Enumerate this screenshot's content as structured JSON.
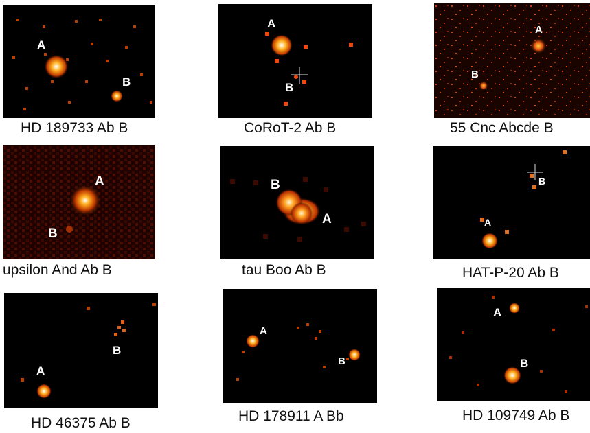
{
  "panels": [
    {
      "caption": "HD 189733 Ab B",
      "label_a": "A",
      "label_b": "B"
    },
    {
      "caption": "CoRoT-2 Ab B",
      "label_a": "A",
      "label_b": "B"
    },
    {
      "caption": "55 Cnc Abcde B",
      "label_a": "A",
      "label_b": "B"
    },
    {
      "caption": "upsilon And Ab B",
      "label_a": "A",
      "label_b": "B"
    },
    {
      "caption": "tau Boo Ab B",
      "label_a": "A",
      "label_b": "B"
    },
    {
      "caption": "HAT-P-20 Ab B",
      "label_a": "A",
      "label_b": "B"
    },
    {
      "caption": "HD 46375 Ab B",
      "label_a": "A",
      "label_b": "B"
    },
    {
      "caption": "HD 178911 A Bb",
      "label_a": "A",
      "label_b": "B"
    },
    {
      "caption": "HD 109749 Ab B",
      "label_a": "A",
      "label_b": "B"
    }
  ],
  "colors": {
    "background": "#000000",
    "glow_core": "#ffffff",
    "glow_mid": "#ffa21a",
    "glow_outer": "#b83200"
  }
}
